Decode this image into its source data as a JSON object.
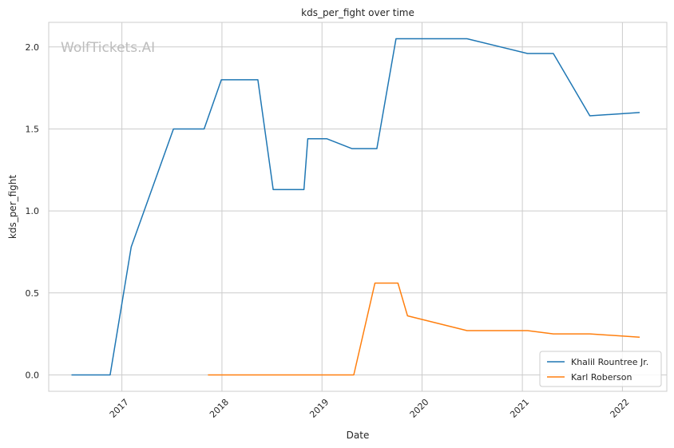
{
  "chart_data": {
    "type": "line",
    "title": "kds_per_fight over time",
    "xlabel": "Date",
    "ylabel": "kds_per_fight",
    "watermark": "WolfTickets.AI",
    "ylim": [
      -0.1,
      2.15
    ],
    "xlim": [
      "2016-04-09",
      "2022-06-12"
    ],
    "x_ticks": [
      "2017",
      "2018",
      "2019",
      "2020",
      "2021",
      "2022"
    ],
    "y_ticks": [
      "0.0",
      "0.5",
      "1.0",
      "1.5",
      "2.0"
    ],
    "grid": true,
    "legend_position": "lower-right",
    "colors": {
      "Khalil Rountree Jr.": "#1f77b4",
      "Karl Roberson": "#ff7f0e",
      "grid": "#cccccc",
      "spine": "#cccccc"
    },
    "series": [
      {
        "name": "Khalil Rountree Jr.",
        "color": "#1f77b4",
        "points": [
          [
            "2016-07-01",
            0.0
          ],
          [
            "2016-11-19",
            0.0
          ],
          [
            "2017-02-04",
            0.78
          ],
          [
            "2017-07-08",
            1.5
          ],
          [
            "2017-10-28",
            1.5
          ],
          [
            "2017-12-30",
            1.8
          ],
          [
            "2018-05-12",
            1.8
          ],
          [
            "2018-07-07",
            1.13
          ],
          [
            "2018-10-27",
            1.13
          ],
          [
            "2018-11-10",
            1.44
          ],
          [
            "2019-01-19",
            1.44
          ],
          [
            "2019-04-20",
            1.38
          ],
          [
            "2019-07-20",
            1.38
          ],
          [
            "2019-09-28",
            2.05
          ],
          [
            "2020-06-13",
            2.05
          ],
          [
            "2021-01-20",
            1.96
          ],
          [
            "2021-04-24",
            1.96
          ],
          [
            "2021-09-04",
            1.58
          ],
          [
            "2022-03-05",
            1.6
          ]
        ]
      },
      {
        "name": "Karl Roberson",
        "color": "#ff7f0e",
        "points": [
          [
            "2017-11-11",
            0.0
          ],
          [
            "2019-04-27",
            0.0
          ],
          [
            "2019-07-13",
            0.56
          ],
          [
            "2019-10-05",
            0.56
          ],
          [
            "2019-11-09",
            0.36
          ],
          [
            "2020-06-13",
            0.27
          ],
          [
            "2021-01-20",
            0.27
          ],
          [
            "2021-04-24",
            0.25
          ],
          [
            "2021-09-04",
            0.25
          ],
          [
            "2022-03-05",
            0.23
          ]
        ]
      }
    ]
  }
}
